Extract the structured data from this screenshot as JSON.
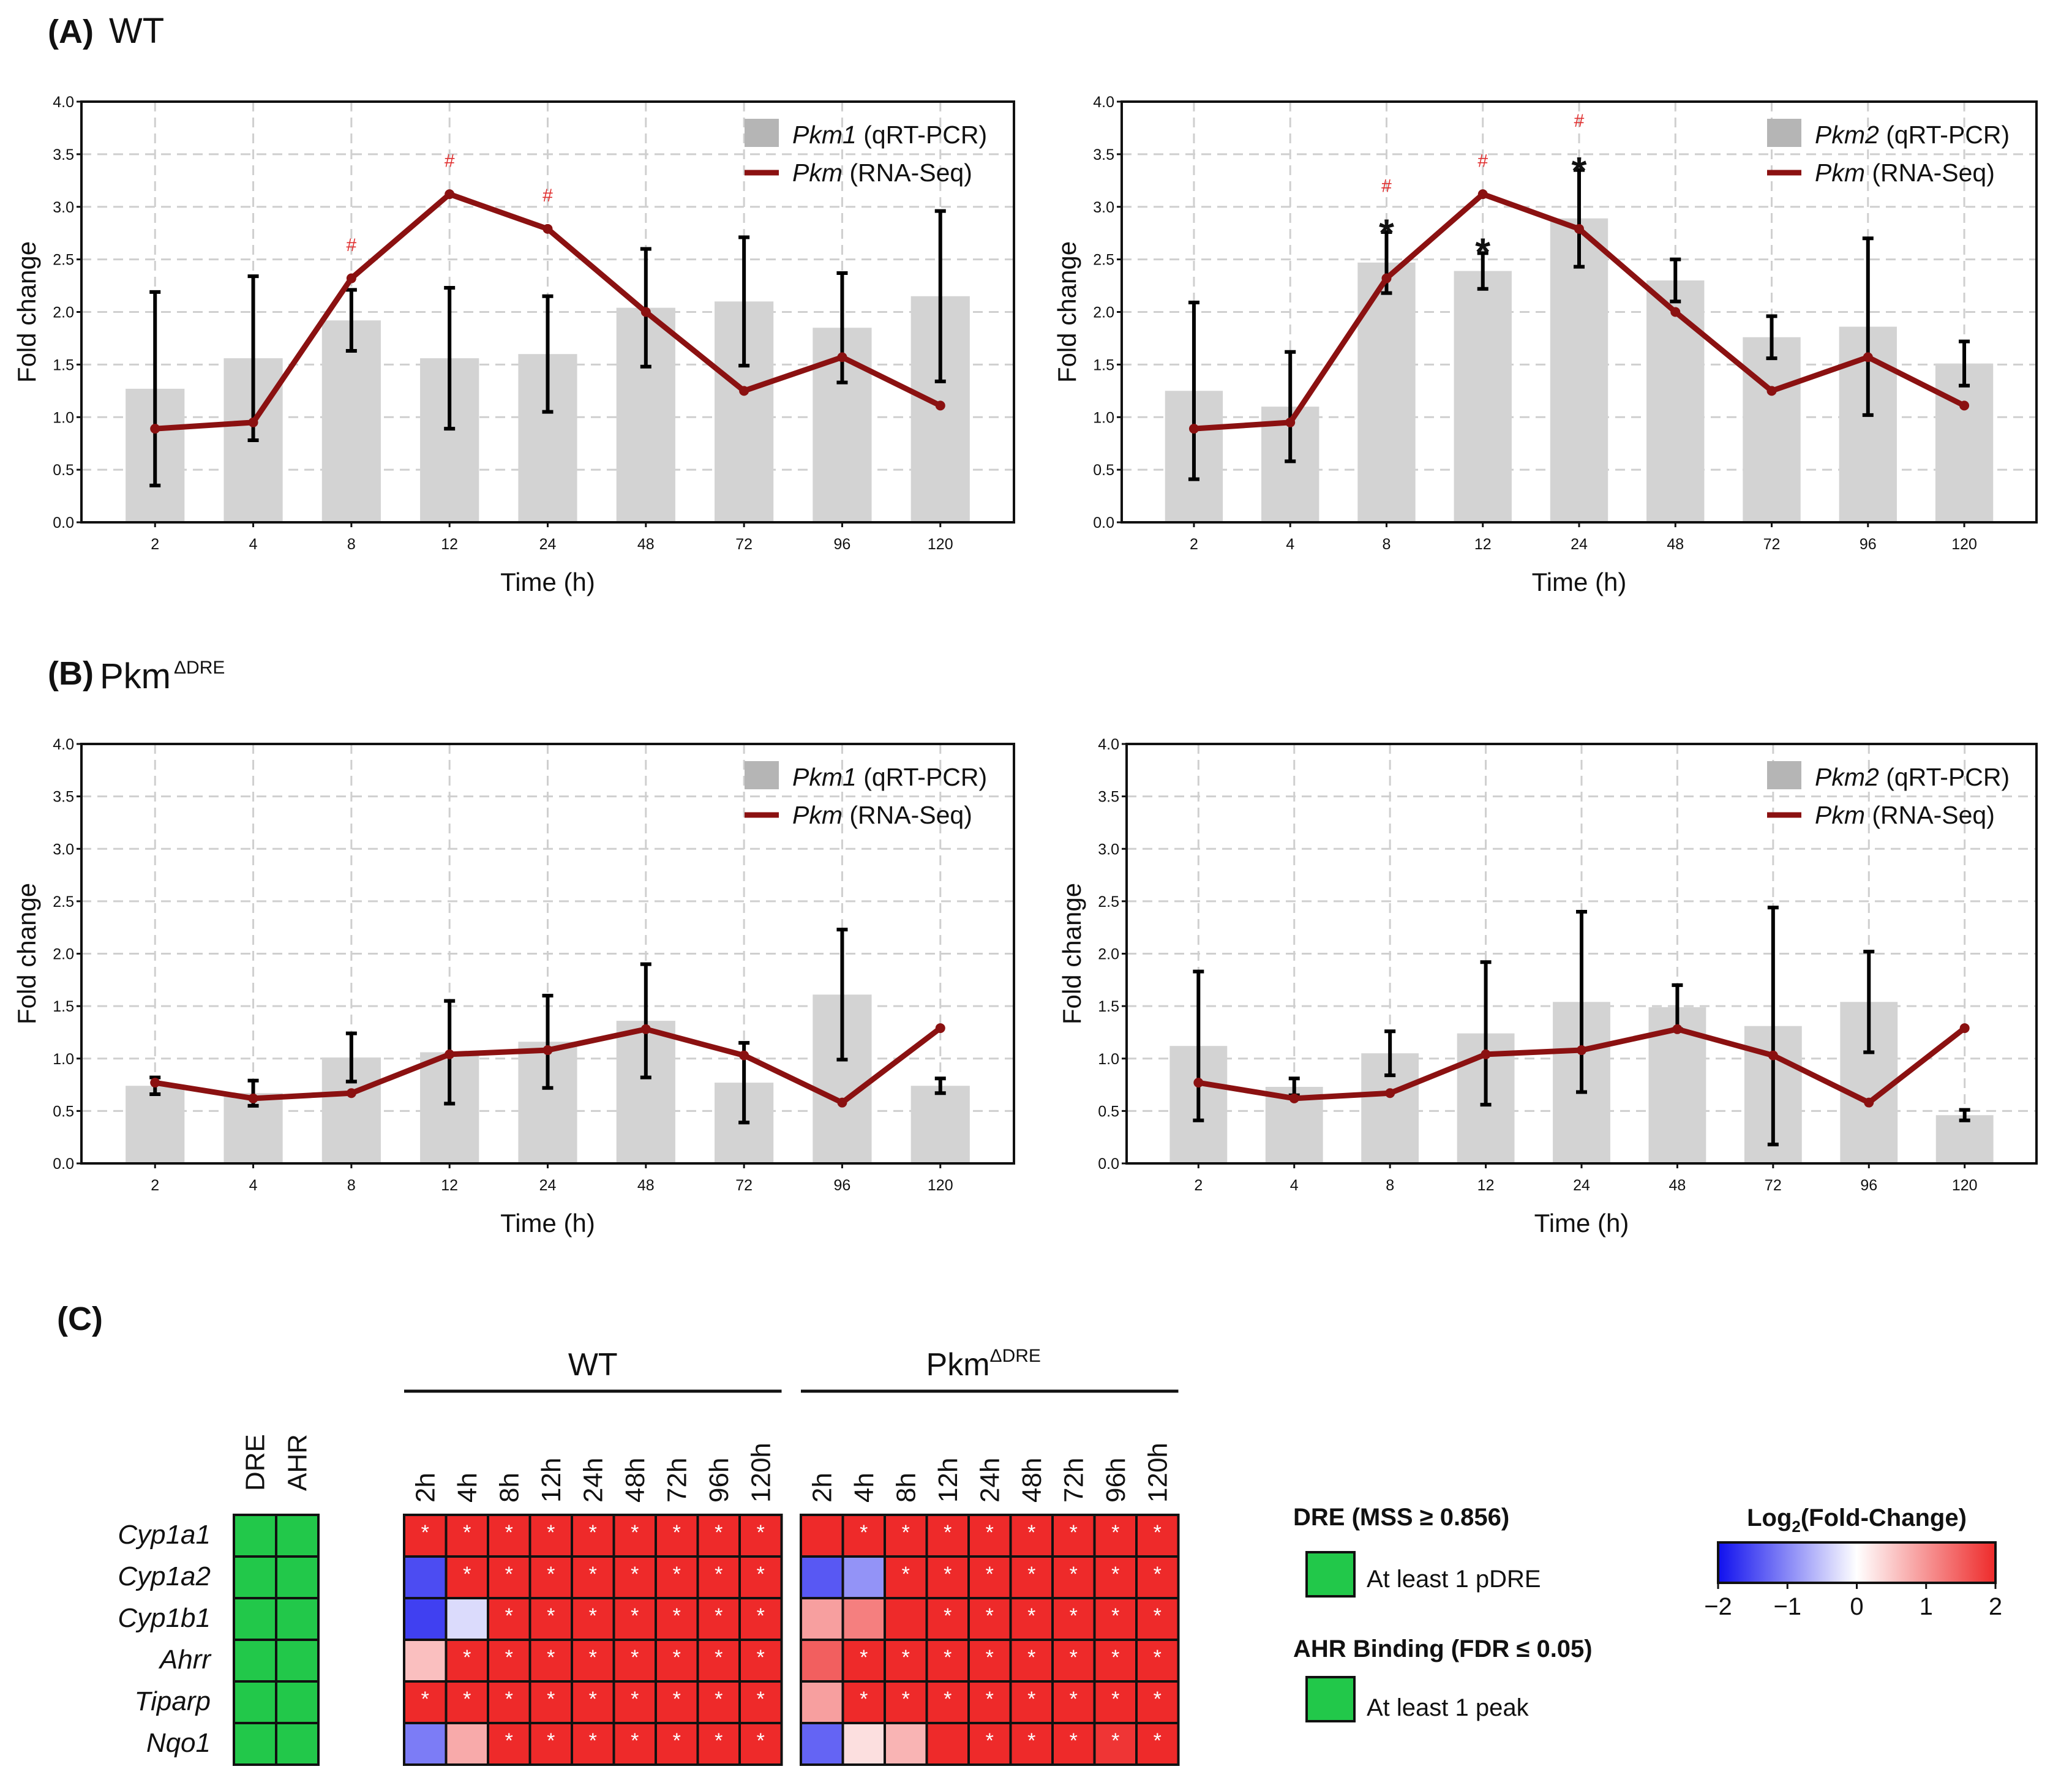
{
  "labels": {
    "panel_a": "(A)",
    "panel_a_title": "WT",
    "panel_b": "(B)",
    "panel_b_title": "Pkm",
    "panel_b_sup": "ΔDRE",
    "panel_c": "(C)"
  },
  "chart_data": [
    {
      "id": "A1",
      "type": "bar",
      "categories": [
        "2",
        "4",
        "8",
        "12",
        "24",
        "48",
        "72",
        "96",
        "120"
      ],
      "xlabel": "Time (h)",
      "ylabel": "Fold change",
      "ylim": [
        0,
        4.0
      ],
      "yticks": [
        "0.0",
        "0.5",
        "1.0",
        "1.5",
        "2.0",
        "2.5",
        "3.0",
        "3.5",
        "4.0"
      ],
      "grid": true,
      "legend_position": "top-right",
      "series": [
        {
          "name": "Pkm1",
          "suffix": " (qRT-PCR)",
          "kind": "bar",
          "values": [
            1.27,
            1.56,
            1.92,
            1.56,
            1.6,
            2.04,
            2.1,
            1.85,
            2.15
          ],
          "errors": [
            0.92,
            0.78,
            0.29,
            0.67,
            0.55,
            0.56,
            0.61,
            0.52,
            0.81
          ]
        },
        {
          "name": "Pkm",
          "suffix": "  (RNA-Seq)",
          "kind": "line",
          "values": [
            0.89,
            0.95,
            2.32,
            3.12,
            2.79,
            2.0,
            1.25,
            1.57,
            1.11
          ]
        }
      ],
      "annotations": [
        {
          "category": "8",
          "text": "#",
          "color": "#e03030",
          "y": 2.58
        },
        {
          "category": "12",
          "text": "#",
          "color": "#e03030",
          "y": 3.38
        },
        {
          "category": "24",
          "text": "#",
          "color": "#e03030",
          "y": 3.05
        }
      ]
    },
    {
      "id": "A2",
      "type": "bar",
      "categories": [
        "2",
        "4",
        "8",
        "12",
        "24",
        "48",
        "72",
        "96",
        "120"
      ],
      "xlabel": "Time (h)",
      "ylabel": "Fold change",
      "ylim": [
        0,
        4.0
      ],
      "yticks": [
        "0.0",
        "0.5",
        "1.0",
        "1.5",
        "2.0",
        "2.5",
        "3.0",
        "3.5",
        "4.0"
      ],
      "grid": true,
      "legend_position": "top-right",
      "series": [
        {
          "name": "Pkm2",
          "suffix": " (qRT-PCR)",
          "kind": "bar",
          "values": [
            1.25,
            1.1,
            2.47,
            2.39,
            2.89,
            2.3,
            1.76,
            1.86,
            1.51
          ],
          "errors": [
            0.84,
            0.52,
            0.29,
            0.17,
            0.46,
            0.2,
            0.2,
            0.84,
            0.21
          ]
        },
        {
          "name": "Pkm",
          "suffix": "  (RNA-Seq)",
          "kind": "line",
          "values": [
            0.89,
            0.95,
            2.32,
            3.12,
            2.79,
            2.0,
            1.25,
            1.57,
            1.11
          ]
        }
      ],
      "annotations": [
        {
          "category": "8",
          "text": "#",
          "color": "#e03030",
          "y": 3.14
        },
        {
          "category": "8",
          "text": "*",
          "color": "#111111",
          "y": 2.88
        },
        {
          "category": "12",
          "text": "#",
          "color": "#e03030",
          "y": 3.38
        },
        {
          "category": "12",
          "text": "*",
          "color": "#111111",
          "y": 2.7
        },
        {
          "category": "24",
          "text": "#",
          "color": "#e03030",
          "y": 3.76
        },
        {
          "category": "24",
          "text": "*",
          "color": "#111111",
          "y": 3.47
        }
      ]
    },
    {
      "id": "B1",
      "type": "bar",
      "categories": [
        "2",
        "4",
        "8",
        "12",
        "24",
        "48",
        "72",
        "96",
        "120"
      ],
      "xlabel": "Time (h)",
      "ylabel": "Fold change",
      "ylim": [
        0,
        4.0
      ],
      "yticks": [
        "0.0",
        "0.5",
        "1.0",
        "1.5",
        "2.0",
        "2.5",
        "3.0",
        "3.5",
        "4.0"
      ],
      "grid": true,
      "legend_position": "top-right",
      "series": [
        {
          "name": "Pkm1",
          "suffix": " (qRT-PCR)",
          "kind": "bar",
          "values": [
            0.74,
            0.67,
            1.01,
            1.06,
            1.16,
            1.36,
            0.77,
            1.61,
            0.74
          ],
          "errors": [
            0.08,
            0.12,
            0.23,
            0.49,
            0.44,
            0.54,
            0.38,
            0.62,
            0.07
          ]
        },
        {
          "name": "Pkm",
          "suffix": "  (RNA-Seq)",
          "kind": "line",
          "values": [
            0.77,
            0.62,
            0.67,
            1.04,
            1.08,
            1.28,
            1.03,
            0.58,
            1.29
          ]
        }
      ],
      "annotations": []
    },
    {
      "id": "B2",
      "type": "bar",
      "categories": [
        "2",
        "4",
        "8",
        "12",
        "24",
        "48",
        "72",
        "96",
        "120"
      ],
      "xlabel": "Time (h)",
      "ylabel": "Fold change",
      "ylim": [
        0,
        4.0
      ],
      "yticks": [
        "0.0",
        "0.5",
        "1.0",
        "1.5",
        "2.0",
        "2.5",
        "3.0",
        "3.5",
        "4.0"
      ],
      "grid": true,
      "legend_position": "top-right",
      "series": [
        {
          "name": "Pkm2",
          "suffix": " (qRT-PCR)",
          "kind": "bar",
          "values": [
            1.12,
            0.73,
            1.05,
            1.24,
            1.54,
            1.49,
            1.31,
            1.54,
            0.46
          ],
          "errors": [
            0.71,
            0.08,
            0.21,
            0.68,
            0.86,
            0.21,
            1.13,
            0.48,
            0.05
          ]
        },
        {
          "name": "Pkm",
          "suffix": "  (RNA-Seq)",
          "kind": "line",
          "values": [
            0.77,
            0.62,
            0.67,
            1.04,
            1.08,
            1.28,
            1.03,
            0.58,
            1.29
          ]
        }
      ],
      "annotations": []
    },
    {
      "id": "C",
      "type": "heatmap",
      "genes": [
        "Cyp1a1",
        "Cyp1a2",
        "Cyp1b1",
        "Ahrr",
        "Tiparp",
        "Nqo1"
      ],
      "binding_columns": [
        "DRE",
        "AHR"
      ],
      "binding": [
        [
          1,
          1
        ],
        [
          1,
          1
        ],
        [
          1,
          1
        ],
        [
          1,
          1
        ],
        [
          1,
          1
        ],
        [
          1,
          1
        ]
      ],
      "groups": [
        {
          "label": "WT",
          "sup": "",
          "timepoints": [
            "2h",
            "4h",
            "8h",
            "12h",
            "24h",
            "48h",
            "72h",
            "96h",
            "120h"
          ],
          "values": [
            [
              2,
              2,
              2,
              2,
              2,
              2,
              2,
              2,
              2
            ],
            [
              -1.5,
              2,
              2,
              2,
              2,
              2,
              2,
              2,
              2
            ],
            [
              -1.6,
              -0.3,
              2,
              2,
              2,
              2,
              2,
              2,
              2
            ],
            [
              0.6,
              2,
              2,
              2,
              2,
              2,
              2,
              2,
              2
            ],
            [
              2,
              2,
              2,
              2,
              2,
              2,
              2,
              2,
              2
            ],
            [
              -1.1,
              0.8,
              2,
              2,
              2,
              2,
              2,
              2,
              2
            ]
          ],
          "sig": [
            [
              1,
              1,
              1,
              1,
              1,
              1,
              1,
              1,
              1
            ],
            [
              0,
              1,
              1,
              1,
              1,
              1,
              1,
              1,
              1
            ],
            [
              0,
              0,
              1,
              1,
              1,
              1,
              1,
              1,
              1
            ],
            [
              0,
              1,
              1,
              1,
              1,
              1,
              1,
              1,
              1
            ],
            [
              1,
              1,
              1,
              1,
              1,
              1,
              1,
              1,
              1
            ],
            [
              0,
              0,
              1,
              1,
              1,
              1,
              1,
              1,
              1
            ]
          ]
        },
        {
          "label": "Pkm",
          "sup": "ΔDRE",
          "timepoints": [
            "2h",
            "4h",
            "8h",
            "12h",
            "24h",
            "48h",
            "72h",
            "96h",
            "120h"
          ],
          "values": [
            [
              2,
              2,
              2,
              2,
              2,
              2,
              2,
              2,
              2
            ],
            [
              -1.4,
              -0.9,
              2,
              2,
              2,
              2,
              2,
              2,
              2
            ],
            [
              0.9,
              1.2,
              2,
              2,
              2,
              2,
              2,
              2,
              2
            ],
            [
              1.5,
              2,
              2,
              2,
              2,
              2,
              2,
              2,
              2
            ],
            [
              0.9,
              2,
              2,
              2,
              2,
              2,
              2,
              2,
              2
            ],
            [
              -1.3,
              0.3,
              0.7,
              2,
              2,
              2,
              2,
              1.9,
              2
            ]
          ],
          "sig": [
            [
              0,
              1,
              1,
              1,
              1,
              1,
              1,
              1,
              1
            ],
            [
              0,
              0,
              1,
              1,
              1,
              1,
              1,
              1,
              1
            ],
            [
              0,
              0,
              0,
              1,
              1,
              1,
              1,
              1,
              1
            ],
            [
              0,
              1,
              1,
              1,
              1,
              1,
              1,
              1,
              1
            ],
            [
              0,
              1,
              1,
              1,
              1,
              1,
              1,
              1,
              1
            ],
            [
              0,
              0,
              0,
              0,
              1,
              1,
              1,
              1,
              1
            ]
          ]
        }
      ],
      "legend": {
        "dre_title": "DRE (MSS ≥ 0.856)",
        "dre_item": "At least 1 pDRE",
        "ahr_title": "AHR Binding (FDR ≤ 0.05)",
        "ahr_item": "At least 1 peak",
        "scale_title_pre": "Log",
        "scale_title_sub": "2",
        "scale_title_post": "(Fold-Change)",
        "scale_ticks": [
          "−2",
          "−1",
          "0",
          "1",
          "2"
        ],
        "scale_range": [
          -2,
          2
        ]
      }
    }
  ],
  "colors": {
    "bar": "#d3d3d3",
    "legend_bar": "#b5b5b5",
    "line": "#8b1111",
    "error": "#000000",
    "grid": "#cfcfcf",
    "sig_hash": "#e03030",
    "binding_green": "#22c84a",
    "heat_low": "#1010ee",
    "heat_mid": "#ffffff",
    "heat_high": "#ee2a2a"
  }
}
